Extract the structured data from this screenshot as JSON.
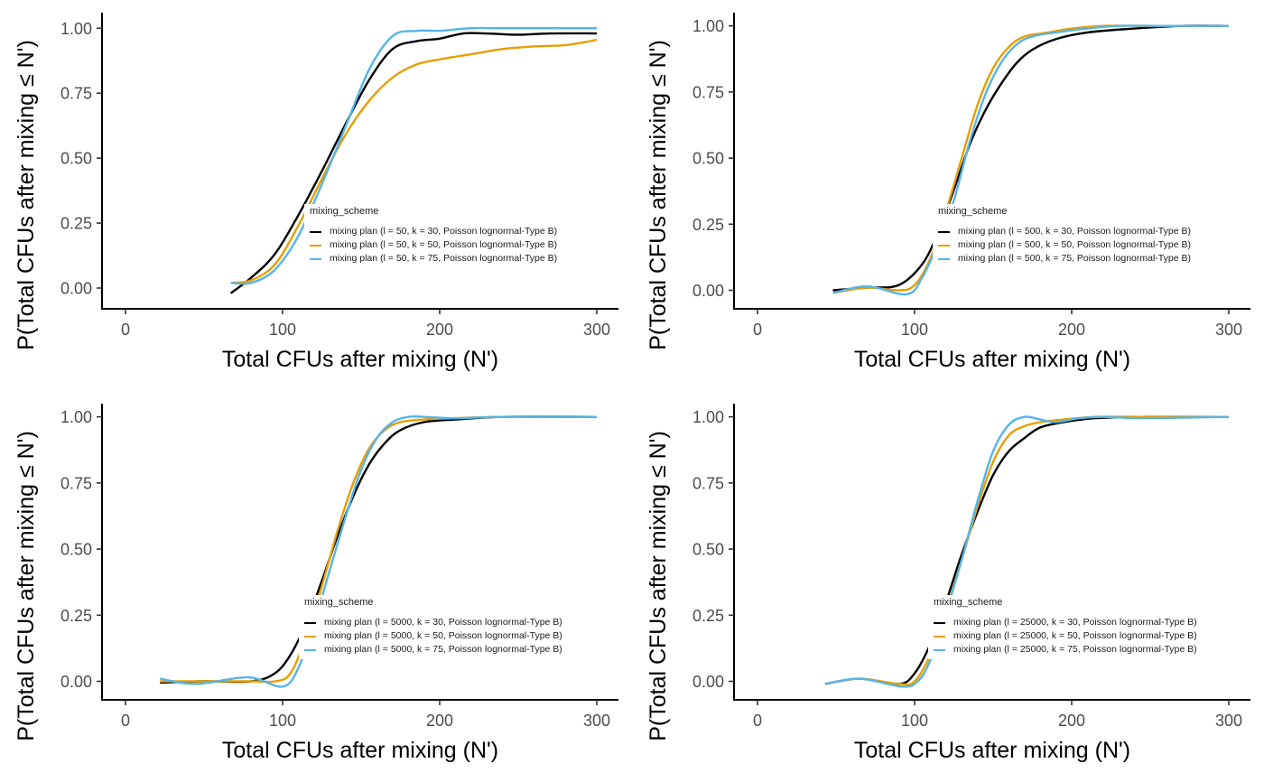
{
  "chart_data": [
    {
      "type": "line",
      "xlabel": "Total CFUs after mixing (N')",
      "ylabel": "P(Total CFUs after mixing ≤ N')",
      "xlim": [
        -15,
        315
      ],
      "ylim": [
        -0.08,
        1.06
      ],
      "xticks": [
        0,
        100,
        200,
        300
      ],
      "yticks": [
        "0.00",
        "0.25",
        "0.50",
        "0.75",
        "1.00"
      ],
      "grid": false,
      "legend": {
        "title": "mixing_scheme",
        "placement": "center-right",
        "entries": [
          "mixing plan (l = 50, k = 30, Poisson lognormal-Type B)",
          "mixing plan (l = 50, k = 50, Poisson lognormal-Type B)",
          "mixing plan (l = 50, k = 75, Poisson lognormal-Type B)"
        ]
      },
      "series": [
        {
          "color": "#000000",
          "x": [
            67,
            80,
            95,
            110,
            125,
            140,
            155,
            170,
            185,
            200,
            215,
            230,
            250,
            270,
            300
          ],
          "y": [
            -0.02,
            0.04,
            0.13,
            0.28,
            0.45,
            0.63,
            0.8,
            0.92,
            0.95,
            0.96,
            0.98,
            0.98,
            0.975,
            0.98,
            0.98
          ]
        },
        {
          "color": "#E69F00",
          "x": [
            67,
            80,
            95,
            110,
            125,
            140,
            155,
            170,
            185,
            200,
            220,
            240,
            260,
            280,
            300
          ],
          "y": [
            0.02,
            0.03,
            0.09,
            0.24,
            0.42,
            0.59,
            0.72,
            0.81,
            0.86,
            0.88,
            0.9,
            0.92,
            0.93,
            0.935,
            0.955
          ]
        },
        {
          "color": "#56B4E9",
          "x": [
            67,
            80,
            95,
            110,
            125,
            140,
            155,
            170,
            185,
            200,
            220,
            240,
            260,
            280,
            300
          ],
          "y": [
            0.02,
            0.02,
            0.07,
            0.2,
            0.4,
            0.62,
            0.84,
            0.97,
            0.99,
            0.99,
            1.0,
            1.0,
            1.0,
            1.0,
            1.0
          ]
        }
      ]
    },
    {
      "type": "line",
      "xlabel": "Total CFUs after mixing (N')",
      "ylabel": "P(Total CFUs after mixing ≤ N')",
      "xlim": [
        -15,
        315
      ],
      "ylim": [
        -0.07,
        1.05
      ],
      "xticks": [
        0,
        100,
        200,
        300
      ],
      "yticks": [
        "0.00",
        "0.25",
        "0.50",
        "0.75",
        "1.00"
      ],
      "grid": false,
      "legend": {
        "title": "mixing_scheme",
        "placement": "center-right",
        "entries": [
          "mixing plan (l = 500, k = 30, Poisson lognormal-Type B)",
          "mixing plan (l = 500, k = 50, Poisson lognormal-Type B)",
          "mixing plan (l = 500, k = 75, Poisson lognormal-Type B)"
        ]
      },
      "series": [
        {
          "color": "#000000",
          "x": [
            48,
            70,
            90,
            105,
            115,
            125,
            135,
            145,
            155,
            165,
            175,
            190,
            210,
            240,
            270,
            300
          ],
          "y": [
            0.0,
            0.01,
            0.02,
            0.1,
            0.22,
            0.38,
            0.55,
            0.68,
            0.78,
            0.86,
            0.91,
            0.95,
            0.975,
            0.99,
            1.0,
            1.0
          ]
        },
        {
          "color": "#E69F00",
          "x": [
            48,
            70,
            90,
            100,
            110,
            120,
            130,
            140,
            150,
            160,
            170,
            185,
            200,
            220,
            250,
            300
          ],
          "y": [
            -0.01,
            0.01,
            0.0,
            0.02,
            0.12,
            0.3,
            0.5,
            0.7,
            0.84,
            0.92,
            0.96,
            0.975,
            0.99,
            1.0,
            1.0,
            1.0
          ]
        },
        {
          "color": "#56B4E9",
          "x": [
            48,
            70,
            95,
            105,
            115,
            125,
            135,
            145,
            155,
            165,
            175,
            190,
            210,
            230,
            260,
            300
          ],
          "y": [
            -0.01,
            0.015,
            -0.015,
            0.05,
            0.18,
            0.34,
            0.56,
            0.74,
            0.86,
            0.93,
            0.96,
            0.975,
            0.99,
            1.0,
            1.0,
            1.0
          ]
        }
      ]
    },
    {
      "type": "line",
      "xlabel": "Total CFUs after mixing (N')",
      "ylabel": "P(Total CFUs after mixing ≤ N')",
      "xlim": [
        -15,
        315
      ],
      "ylim": [
        -0.07,
        1.05
      ],
      "xticks": [
        0,
        100,
        200,
        300
      ],
      "yticks": [
        "0.00",
        "0.25",
        "0.50",
        "0.75",
        "1.00"
      ],
      "grid": false,
      "legend": {
        "title": "mixing_scheme",
        "placement": "center-right",
        "entries": [
          "mixing plan (l = 5000, k = 30, Poisson lognormal-Type B)",
          "mixing plan (l = 5000, k = 50, Poisson lognormal-Type B)",
          "mixing plan (l = 5000, k = 75, Poisson lognormal-Type B)"
        ]
      },
      "series": [
        {
          "color": "#000000",
          "x": [
            22,
            50,
            80,
            95,
            105,
            115,
            125,
            135,
            145,
            155,
            165,
            175,
            190,
            210,
            240,
            300
          ],
          "y": [
            -0.005,
            0.0,
            0.0,
            0.03,
            0.1,
            0.22,
            0.38,
            0.55,
            0.7,
            0.82,
            0.9,
            0.95,
            0.98,
            0.99,
            1.0,
            1.0
          ]
        },
        {
          "color": "#E69F00",
          "x": [
            22,
            50,
            80,
            95,
            105,
            115,
            125,
            135,
            145,
            155,
            165,
            175,
            190,
            210,
            240,
            300
          ],
          "y": [
            0.0,
            0.0,
            0.0,
            0.0,
            0.03,
            0.17,
            0.36,
            0.57,
            0.75,
            0.88,
            0.95,
            0.98,
            0.99,
            0.995,
            1.0,
            1.0
          ]
        },
        {
          "color": "#56B4E9",
          "x": [
            22,
            45,
            78,
            100,
            110,
            120,
            130,
            140,
            150,
            160,
            170,
            180,
            190,
            210,
            240,
            300
          ],
          "y": [
            0.01,
            -0.01,
            0.015,
            -0.02,
            0.05,
            0.22,
            0.42,
            0.62,
            0.8,
            0.92,
            0.98,
            1.0,
            1.0,
            0.995,
            1.0,
            1.0
          ]
        }
      ]
    },
    {
      "type": "line",
      "xlabel": "Total CFUs after mixing (N')",
      "ylabel": "P(Total CFUs after mixing ≤ N')",
      "xlim": [
        -15,
        315
      ],
      "ylim": [
        -0.07,
        1.05
      ],
      "xticks": [
        0,
        100,
        200,
        300
      ],
      "yticks": [
        "0.00",
        "0.25",
        "0.50",
        "0.75",
        "1.00"
      ],
      "grid": false,
      "legend": {
        "title": "mixing_scheme",
        "placement": "center-right",
        "entries": [
          "mixing plan (l = 25000, k = 30, Poisson lognormal-Type B)",
          "mixing plan (l = 25000, k = 50, Poisson lognormal-Type B)",
          "mixing plan (l = 25000, k = 75, Poisson lognormal-Type B)"
        ]
      },
      "series": [
        {
          "color": "#000000",
          "x": [
            43,
            65,
            90,
            100,
            110,
            120,
            130,
            140,
            150,
            160,
            170,
            180,
            195,
            215,
            245,
            300
          ],
          "y": [
            -0.01,
            0.01,
            -0.01,
            0.03,
            0.14,
            0.3,
            0.48,
            0.64,
            0.78,
            0.87,
            0.92,
            0.96,
            0.98,
            0.995,
            1.0,
            1.0
          ]
        },
        {
          "color": "#E69F00",
          "x": [
            43,
            65,
            90,
            100,
            110,
            120,
            130,
            140,
            150,
            160,
            170,
            180,
            195,
            215,
            245,
            300
          ],
          "y": [
            -0.01,
            0.01,
            -0.01,
            0.0,
            0.1,
            0.27,
            0.46,
            0.66,
            0.83,
            0.93,
            0.965,
            0.98,
            0.99,
            1.0,
            1.0,
            1.0
          ]
        },
        {
          "color": "#56B4E9",
          "x": [
            43,
            65,
            92,
            102,
            110,
            120,
            130,
            140,
            150,
            160,
            170,
            180,
            190,
            205,
            220,
            245,
            300
          ],
          "y": [
            -0.01,
            0.01,
            -0.02,
            0.0,
            0.08,
            0.26,
            0.46,
            0.68,
            0.87,
            0.97,
            1.0,
            0.99,
            0.98,
            0.995,
            1.0,
            0.995,
            1.0
          ]
        }
      ]
    }
  ]
}
